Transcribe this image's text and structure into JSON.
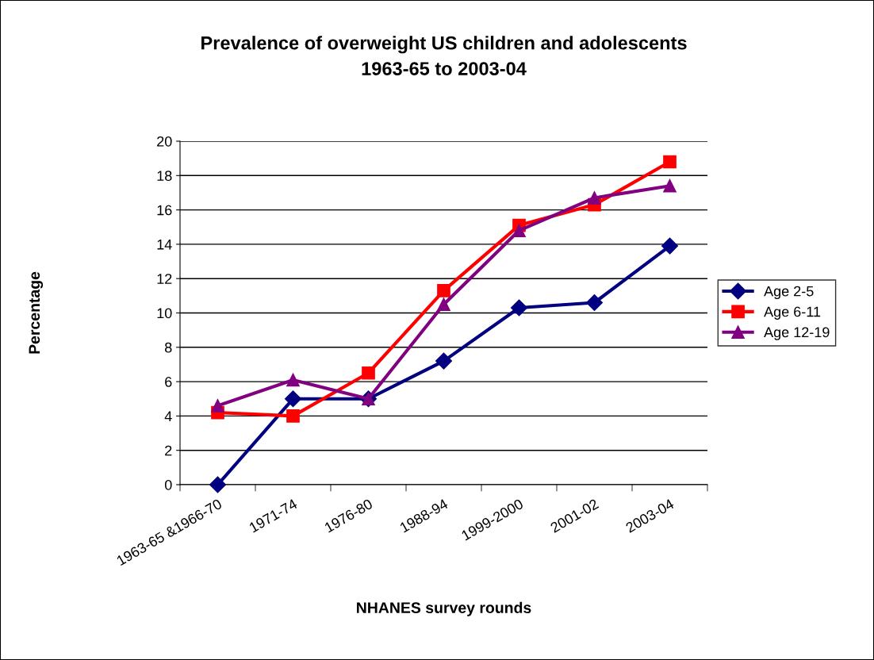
{
  "chart_data": {
    "type": "line",
    "title": "Prevalence of overweight US children and adolescents\n1963-65 to 2003-04",
    "xlabel": "NHANES survey rounds",
    "ylabel": "Percentage",
    "categories": [
      "1963-65 &1966-70",
      "1971-74",
      "1976-80",
      "1988-94",
      "1999-2000",
      "2001-02",
      "2003-04"
    ],
    "series": [
      {
        "name": "Age 2-5",
        "color": "#000080",
        "marker": "diamond",
        "values": [
          0,
          5,
          5,
          7.2,
          10.3,
          10.6,
          13.9
        ]
      },
      {
        "name": "Age 6-11",
        "color": "#ff0000",
        "marker": "square",
        "values": [
          4.2,
          4.0,
          6.5,
          11.3,
          15.1,
          16.3,
          18.8
        ]
      },
      {
        "name": "Age 12-19",
        "color": "#800080",
        "marker": "triangle",
        "values": [
          4.6,
          6.1,
          5.0,
          10.5,
          14.8,
          16.7,
          17.4
        ]
      }
    ],
    "ylim": [
      0,
      20
    ],
    "yticks": [
      0,
      2,
      4,
      6,
      8,
      10,
      12,
      14,
      16,
      18,
      20
    ],
    "grid": "y",
    "legend": "right",
    "line_style": "solid"
  }
}
